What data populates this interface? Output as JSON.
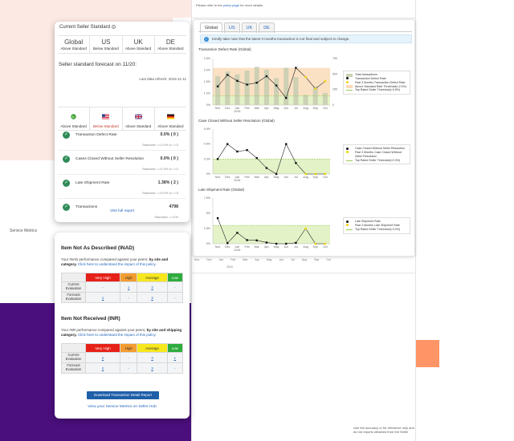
{
  "report": {
    "note_prefix": "Please refer to the",
    "note_link": "policy page",
    "note_suffix": "for more details.",
    "tabs": [
      {
        "label": "Global",
        "active": true
      },
      {
        "label": "US",
        "active": false
      },
      {
        "label": "UK",
        "active": false
      },
      {
        "label": "DE",
        "active": false
      }
    ],
    "info": "Kindly take note that the latest 3 months transaction is not final and subject to change.",
    "footer": "clue the accuracy or for reference only and do not reports obtained from the Seller"
  },
  "charts": {
    "months": [
      "Nov",
      "Dec",
      "Jan",
      "Feb",
      "Mar",
      "Apr",
      "May",
      "Jun",
      "Jul",
      "Aug",
      "Sep",
      "Oct"
    ],
    "year_label": "2016",
    "defect": {
      "title": "Transaction Defect Rate (Global)",
      "y_ticks": [
        "2.5%",
        "2.0%",
        "1.5%",
        "1.0%",
        "0%"
      ],
      "y2_ticks": [
        "750",
        "500",
        "250",
        "0"
      ],
      "bars": [
        0.62,
        0.72,
        0.66,
        0.74,
        0.82,
        0.76,
        0.58,
        0.8,
        0.6,
        0.22,
        0.4,
        0.26
      ],
      "line": [
        1.0,
        1.62,
        1.3,
        1.1,
        1.2,
        1.55,
        1.05,
        0.38,
        2.0,
        1.5,
        0.88,
        1.28
      ],
      "legend": [
        "Total transactions",
        "Transaction Defect Rate",
        "Past 3 Months Transaction Defect Rate",
        "Above Standard Rate Threshold(<2.0%)",
        "Top Rated Seller Threshold(<0.5%)"
      ]
    },
    "cases": {
      "title": "Case Closed Without Seller Resolution (Global)",
      "y_ticks": [
        "0.9%",
        "0.6%",
        "0.3%",
        "0%"
      ],
      "line": [
        0.3,
        0.6,
        0.45,
        0.48,
        0.32,
        0.12,
        0.0,
        0.6,
        0.22,
        0.0,
        0.0,
        0.0
      ],
      "legend": [
        "Case Closed Without Seller Resolution",
        "Past 3 Months Case Closed Without Seller Resolution",
        "Top Rated Seller Threshold(<0.3%)"
      ]
    },
    "late": {
      "title": "Late Shipment Rate (Global)",
      "y_ticks": [
        "7.5%",
        "5%",
        "2.5%",
        "0%"
      ],
      "line": [
        4.2,
        0.1,
        1.8,
        0.6,
        0.55,
        0.2,
        0.0,
        0.0,
        0.15,
        2.5,
        0.0,
        0.0
      ],
      "legend": [
        "Late Shipment Rate",
        "Past 3 Months Late Shipment Rate",
        "Top Rated Seller Threshold(<3.0%)"
      ]
    }
  },
  "seller_standard": {
    "title": "Current Seller Standard",
    "regions": [
      {
        "name": "Global",
        "status": "Above Standard"
      },
      {
        "name": "US",
        "status": "Below Standard"
      },
      {
        "name": "UK",
        "status": "Above Standard"
      },
      {
        "name": "DE",
        "status": "Above Standard"
      }
    ],
    "forecast_heading": "Seller standard forecast on 11/20:",
    "refresh": "Last data refresh: 2016-11-11",
    "forecast": [
      {
        "status": "Above Standard",
        "warn": false
      },
      {
        "status": "Below Standard",
        "warn": true
      },
      {
        "status": "Above Standard",
        "warn": false
      },
      {
        "status": "Above Standard",
        "warn": false
      }
    ],
    "metrics": [
      {
        "name": "Transaction Defect Rate",
        "value": "0.0% ( 0 )",
        "standard": "Standard: <=2.0% or <=3"
      },
      {
        "name": "Cases Closed Without Seller Resolution",
        "value": "0.0% ( 0 )",
        "standard": "Standard: <=0.3% or <=2"
      },
      {
        "name": "Late Shipment Rate",
        "value": "1.38% ( 2 )",
        "standard": "Standard: <=5.0% or <=5"
      },
      {
        "name": "Transactions",
        "value": "4798",
        "standard": "Standard: >=100"
      }
    ],
    "visit_link": "Visit full report",
    "next_heading": "Service Metrics"
  },
  "inad": {
    "title": "Item Not As Described (INAD)",
    "desc_prefix": "Your INAD performance compared against your peers;",
    "desc_bold": "by site and category.",
    "desc_link": "Click here to understand the impact of this policy.",
    "headers": [
      "Very High",
      "High",
      "Average",
      "Low"
    ],
    "rows": [
      {
        "label": "Current Evaluation",
        "cells": [
          "-",
          "1",
          "3",
          "-"
        ]
      },
      {
        "label": "Forecast Evaluation",
        "cells": [
          "1",
          "-",
          "3",
          "-"
        ]
      }
    ]
  },
  "inr": {
    "title": "Item Not Received (INR)",
    "desc_prefix": "Your INR performance compared against your peers;",
    "desc_bold": "by site and shipping category.",
    "desc_link": "Click here to understand the impact of this policy.",
    "headers": [
      "Very High",
      "High",
      "Average",
      "Low"
    ],
    "rows": [
      {
        "label": "Current Evaluation",
        "cells": [
          "2",
          "-",
          "3",
          "1"
        ]
      },
      {
        "label": "Forecast Evaluation",
        "cells": [
          "2",
          "-",
          "3",
          "-"
        ]
      }
    ]
  },
  "actions": {
    "download": "Download Transaction Detail Report",
    "service_link": "View your Service Metrics on Seller Hub"
  },
  "colors": {
    "purple": "#4b0f7d",
    "orange": "#ff9466",
    "pink": "#fde9e3",
    "link": "#2266bb",
    "green_check": "#2e8b57"
  }
}
